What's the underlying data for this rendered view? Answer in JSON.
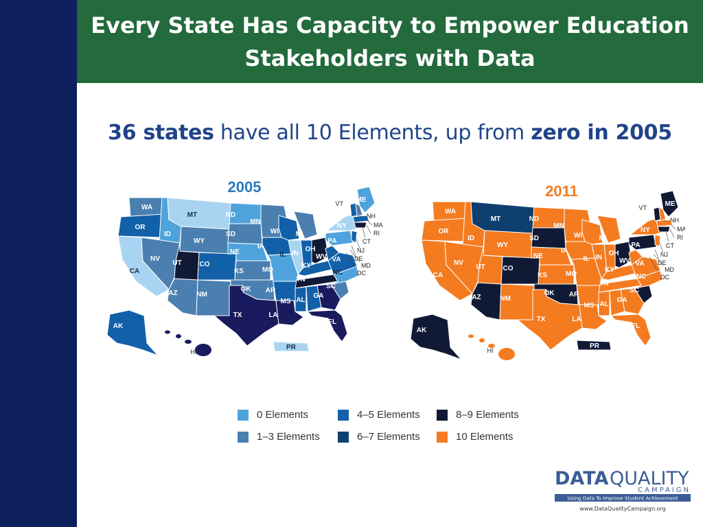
{
  "title": {
    "line1": "Every State Has Capacity to Empower Education",
    "line2": "Stakeholders with Data"
  },
  "subtitle": {
    "bold1": "36 states",
    "middle": " have all 10 Elements, up from ",
    "bold2": "zero in 2005"
  },
  "maps": [
    {
      "year": "2005",
      "state_labels": [
        "WA",
        "OR",
        "CA",
        "ID",
        "NV",
        "MT",
        "WY",
        "UT",
        "AZ",
        "CO",
        "NM",
        "ND",
        "SD",
        "NE",
        "KS",
        "OK",
        "TX",
        "MN",
        "IA",
        "MO",
        "AR",
        "LA",
        "WI",
        "IL",
        "MI",
        "IN",
        "OH",
        "KY",
        "TN",
        "MS",
        "AL",
        "GA",
        "FL",
        "SC",
        "NC",
        "VA",
        "WV",
        "PA",
        "NY",
        "ME",
        "VT",
        "NH",
        "MA",
        "RI",
        "CT",
        "NJ",
        "DE",
        "MD",
        "DC",
        "AK",
        "HI",
        "PR"
      ]
    },
    {
      "year": "2011",
      "state_labels": [
        "WA",
        "OR",
        "CA",
        "ID",
        "NV",
        "MT",
        "WY",
        "UT",
        "AZ",
        "CO",
        "NM",
        "ND",
        "SD",
        "NE",
        "KS",
        "OK",
        "TX",
        "MN",
        "IA",
        "MO",
        "AR",
        "LA",
        "WI",
        "IL",
        "MI",
        "IN",
        "OH",
        "KY",
        "TN",
        "MS",
        "AL",
        "GA",
        "FL",
        "SC",
        "NC",
        "VA",
        "WV",
        "PA",
        "NY",
        "ME",
        "VT",
        "NH",
        "MA",
        "RI",
        "CT",
        "NJ",
        "DE",
        "MD",
        "DC",
        "AK",
        "HI",
        "PR"
      ]
    }
  ],
  "legend": [
    {
      "label": "0 Elements",
      "color": "#4fa3dc"
    },
    {
      "label": "1–3 Elements",
      "color": "#4a7fb0"
    },
    {
      "label": "4–5 Elements",
      "color": "#1260a8"
    },
    {
      "label": "6–7 Elements",
      "color": "#0f3f6e"
    },
    {
      "label": "8–9 Elements",
      "color": "#101a35"
    },
    {
      "label": "10 Elements",
      "color": "#f47b20"
    }
  ],
  "logo": {
    "data": "DATA",
    "quality": "QUALITY",
    "campaign": "CAMPAIGN",
    "tagline": "Using Data To Improve Student Achievement",
    "url": "www.DataQualityCampaign.org"
  }
}
